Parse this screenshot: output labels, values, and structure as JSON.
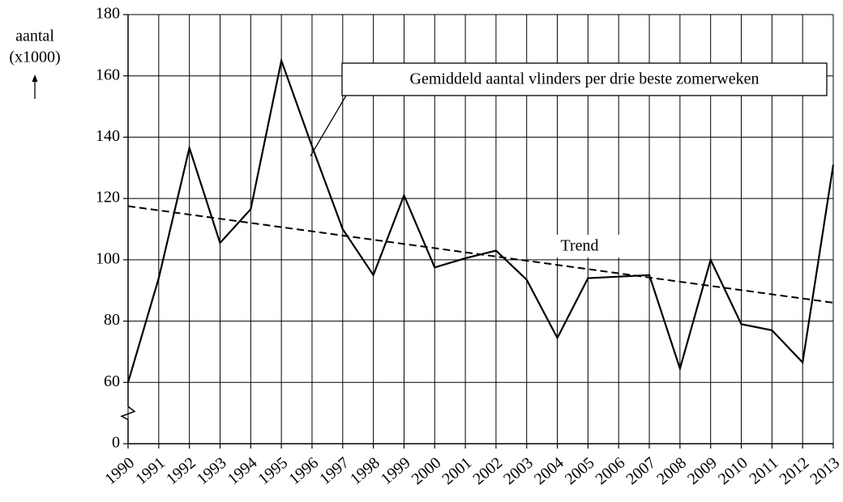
{
  "chart_data": {
    "type": "line",
    "y_label_lines": [
      "aantal",
      "(x1000)"
    ],
    "x": [
      1990,
      1991,
      1992,
      1993,
      1994,
      1995,
      1996,
      1997,
      1998,
      1999,
      2000,
      2001,
      2002,
      2003,
      2004,
      2005,
      2006,
      2007,
      2008,
      2009,
      2010,
      2011,
      2012,
      2013
    ],
    "xlim": [
      1990,
      2013
    ],
    "xticks": [
      1990,
      1991,
      1992,
      1993,
      1994,
      1995,
      1996,
      1997,
      1998,
      1999,
      2000,
      2001,
      2002,
      2003,
      2004,
      2005,
      2006,
      2007,
      2008,
      2009,
      2010,
      2011,
      2012,
      2013
    ],
    "ylim": [
      0,
      180
    ],
    "yticks": [
      0,
      60,
      80,
      100,
      120,
      140,
      160,
      180
    ],
    "y_break": [
      0,
      60
    ],
    "grid": true,
    "series": [
      {
        "name": "Gemiddeld aantal vlinders per drie beste zomerweken",
        "color": "#000000",
        "style": "solid",
        "values": [
          60,
          94,
          136.5,
          105.5,
          116.5,
          165,
          137,
          110,
          95,
          121,
          97.5,
          100.5,
          103,
          93.5,
          74.5,
          94,
          94.5,
          95,
          64.5,
          100,
          79,
          77,
          66.5,
          131
        ]
      },
      {
        "name": "Trend",
        "color": "#000000",
        "style": "dashed",
        "x": [
          1990,
          2013
        ],
        "values": [
          117.5,
          86
        ]
      }
    ]
  }
}
